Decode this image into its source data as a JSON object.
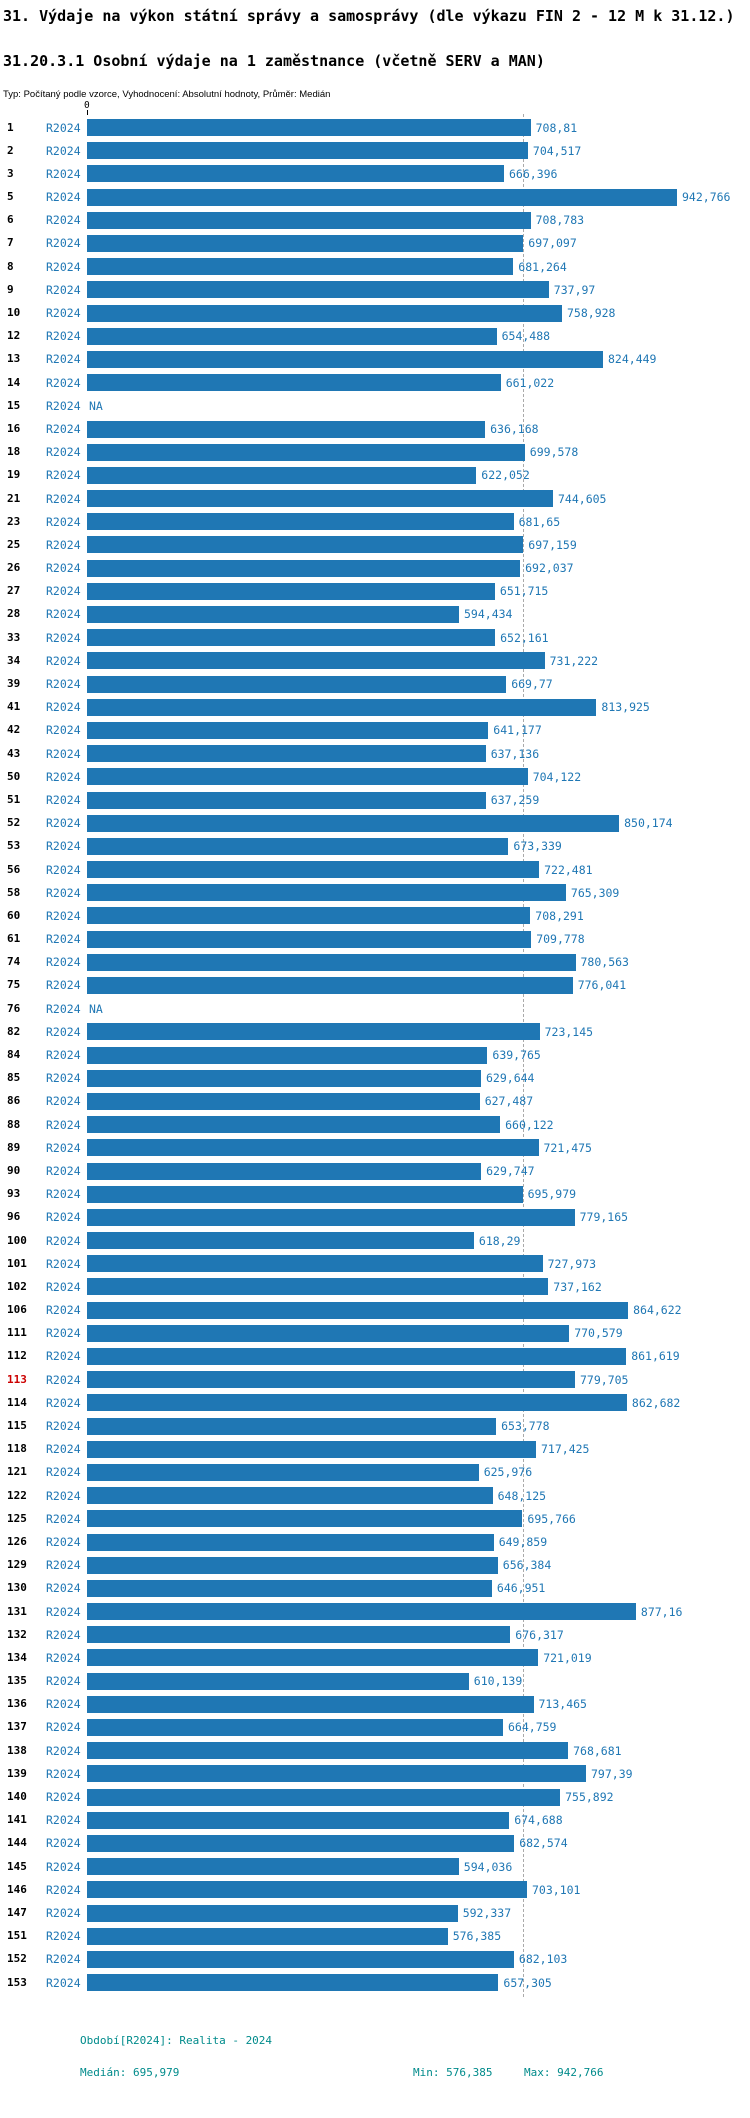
{
  "header": {
    "title": "31. Výdaje na výkon státní správy a samosprávy (dle výkazu FIN 2 - 12 M k 31.12.)",
    "subtitle": "31.20.3.1 Osobní výdaje na 1 zaměstnance (včetně SERV a MAN)",
    "meta": "Typ: Počítaný podle vzorce, Vyhodnocení: Absolutní hodnoty, Průměr: Medián"
  },
  "chart_data": {
    "type": "bar",
    "orientation": "horizontal",
    "title": "31.20.3.1 Osobní výdaje na 1 zaměstnance (včetně SERV a MAN)",
    "series_name": "R2024",
    "x_axis": {
      "zero_label": "0",
      "min": 0,
      "max": 942.766
    },
    "median": 695.979,
    "min_value": 576.385,
    "max_value": 942.766,
    "highlight_category": "113",
    "colors": {
      "bar": "#1f77b4",
      "value_text": "#1f77b4",
      "highlight": "#cc0000",
      "median_line": "#aaaaaa",
      "footer_text": "#008b8b"
    },
    "rows": [
      {
        "cat": "1",
        "label": "708,81",
        "value": 708.81
      },
      {
        "cat": "2",
        "label": "704,517",
        "value": 704.517
      },
      {
        "cat": "3",
        "label": "666,396",
        "value": 666.396
      },
      {
        "cat": "5",
        "label": "942,766",
        "value": 942.766
      },
      {
        "cat": "6",
        "label": "708,783",
        "value": 708.783
      },
      {
        "cat": "7",
        "label": "697,097",
        "value": 697.097
      },
      {
        "cat": "8",
        "label": "681,264",
        "value": 681.264
      },
      {
        "cat": "9",
        "label": "737,97",
        "value": 737.97
      },
      {
        "cat": "10",
        "label": "758,928",
        "value": 758.928
      },
      {
        "cat": "12",
        "label": "654,488",
        "value": 654.488
      },
      {
        "cat": "13",
        "label": "824,449",
        "value": 824.449
      },
      {
        "cat": "14",
        "label": "661,022",
        "value": 661.022
      },
      {
        "cat": "15",
        "label": "NA",
        "value": null
      },
      {
        "cat": "16",
        "label": "636,168",
        "value": 636.168
      },
      {
        "cat": "18",
        "label": "699,578",
        "value": 699.578
      },
      {
        "cat": "19",
        "label": "622,052",
        "value": 622.052
      },
      {
        "cat": "21",
        "label": "744,605",
        "value": 744.605
      },
      {
        "cat": "23",
        "label": "681,65",
        "value": 681.65
      },
      {
        "cat": "25",
        "label": "697,159",
        "value": 697.159
      },
      {
        "cat": "26",
        "label": "692,037",
        "value": 692.037
      },
      {
        "cat": "27",
        "label": "651,715",
        "value": 651.715
      },
      {
        "cat": "28",
        "label": "594,434",
        "value": 594.434
      },
      {
        "cat": "33",
        "label": "652,161",
        "value": 652.161
      },
      {
        "cat": "34",
        "label": "731,222",
        "value": 731.222
      },
      {
        "cat": "39",
        "label": "669,77",
        "value": 669.77
      },
      {
        "cat": "41",
        "label": "813,925",
        "value": 813.925
      },
      {
        "cat": "42",
        "label": "641,177",
        "value": 641.177
      },
      {
        "cat": "43",
        "label": "637,136",
        "value": 637.136
      },
      {
        "cat": "50",
        "label": "704,122",
        "value": 704.122
      },
      {
        "cat": "51",
        "label": "637,259",
        "value": 637.259
      },
      {
        "cat": "52",
        "label": "850,174",
        "value": 850.174
      },
      {
        "cat": "53",
        "label": "673,339",
        "value": 673.339
      },
      {
        "cat": "56",
        "label": "722,481",
        "value": 722.481
      },
      {
        "cat": "58",
        "label": "765,309",
        "value": 765.309
      },
      {
        "cat": "60",
        "label": "708,291",
        "value": 708.291
      },
      {
        "cat": "61",
        "label": "709,778",
        "value": 709.778
      },
      {
        "cat": "74",
        "label": "780,563",
        "value": 780.563
      },
      {
        "cat": "75",
        "label": "776,041",
        "value": 776.041
      },
      {
        "cat": "76",
        "label": "NA",
        "value": null
      },
      {
        "cat": "82",
        "label": "723,145",
        "value": 723.145
      },
      {
        "cat": "84",
        "label": "639,765",
        "value": 639.765
      },
      {
        "cat": "85",
        "label": "629,644",
        "value": 629.644
      },
      {
        "cat": "86",
        "label": "627,487",
        "value": 627.487
      },
      {
        "cat": "88",
        "label": "660,122",
        "value": 660.122
      },
      {
        "cat": "89",
        "label": "721,475",
        "value": 721.475
      },
      {
        "cat": "90",
        "label": "629,747",
        "value": 629.747
      },
      {
        "cat": "93",
        "label": "695,979",
        "value": 695.979
      },
      {
        "cat": "96",
        "label": "779,165",
        "value": 779.165
      },
      {
        "cat": "100",
        "label": "618,29",
        "value": 618.29
      },
      {
        "cat": "101",
        "label": "727,973",
        "value": 727.973
      },
      {
        "cat": "102",
        "label": "737,162",
        "value": 737.162
      },
      {
        "cat": "106",
        "label": "864,622",
        "value": 864.622
      },
      {
        "cat": "111",
        "label": "770,579",
        "value": 770.579
      },
      {
        "cat": "112",
        "label": "861,619",
        "value": 861.619
      },
      {
        "cat": "113",
        "label": "779,705",
        "value": 779.705,
        "highlight": true
      },
      {
        "cat": "114",
        "label": "862,682",
        "value": 862.682
      },
      {
        "cat": "115",
        "label": "653,778",
        "value": 653.778
      },
      {
        "cat": "118",
        "label": "717,425",
        "value": 717.425
      },
      {
        "cat": "121",
        "label": "625,976",
        "value": 625.976
      },
      {
        "cat": "122",
        "label": "648,125",
        "value": 648.125
      },
      {
        "cat": "125",
        "label": "695,766",
        "value": 695.766
      },
      {
        "cat": "126",
        "label": "649,859",
        "value": 649.859
      },
      {
        "cat": "129",
        "label": "656,384",
        "value": 656.384
      },
      {
        "cat": "130",
        "label": "646,951",
        "value": 646.951
      },
      {
        "cat": "131",
        "label": "877,16",
        "value": 877.16
      },
      {
        "cat": "132",
        "label": "676,317",
        "value": 676.317
      },
      {
        "cat": "134",
        "label": "721,019",
        "value": 721.019
      },
      {
        "cat": "135",
        "label": "610,139",
        "value": 610.139
      },
      {
        "cat": "136",
        "label": "713,465",
        "value": 713.465
      },
      {
        "cat": "137",
        "label": "664,759",
        "value": 664.759
      },
      {
        "cat": "138",
        "label": "768,681",
        "value": 768.681
      },
      {
        "cat": "139",
        "label": "797,39",
        "value": 797.39
      },
      {
        "cat": "140",
        "label": "755,892",
        "value": 755.892
      },
      {
        "cat": "141",
        "label": "674,688",
        "value": 674.688
      },
      {
        "cat": "144",
        "label": "682,574",
        "value": 682.574
      },
      {
        "cat": "145",
        "label": "594,036",
        "value": 594.036
      },
      {
        "cat": "146",
        "label": "703,101",
        "value": 703.101
      },
      {
        "cat": "147",
        "label": "592,337",
        "value": 592.337
      },
      {
        "cat": "151",
        "label": "576,385",
        "value": 576.385
      },
      {
        "cat": "152",
        "label": "682,103",
        "value": 682.103
      },
      {
        "cat": "153",
        "label": "657,305",
        "value": 657.305
      }
    ]
  },
  "footer": {
    "period": "Období[R2024]: Realita - 2024",
    "median": "Medián: 695,979",
    "min": "Min: 576,385",
    "max": "Max: 942,766"
  }
}
